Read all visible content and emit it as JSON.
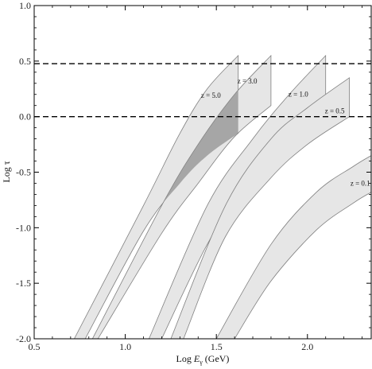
{
  "chart_data": {
    "type": "area",
    "xlabel": "Log E_γ (GeV)",
    "xlabel_parts": {
      "prefix": "Log ",
      "var": "E",
      "sub": "γ",
      "suffix": " (GeV)"
    },
    "ylabel": "Log τ",
    "xlim": [
      0.5,
      2.35
    ],
    "ylim": [
      -2.0,
      1.0
    ],
    "xticks": [
      0.5,
      1.0,
      1.5,
      2.0
    ],
    "xtick_labels": [
      "0.5",
      "1.0",
      "1.5",
      "2.0"
    ],
    "yticks": [
      -2.0,
      -1.5,
      -1.0,
      -0.5,
      0.0,
      0.5,
      1.0
    ],
    "ytick_labels": [
      "-2.0",
      "-1.5",
      "-1.0",
      "-0.5",
      "0.0",
      "0.5",
      "1.0"
    ],
    "grid": false,
    "reference_lines": [
      {
        "y": 0.477,
        "style": "dashed"
      },
      {
        "y": 0.0,
        "style": "dashed"
      }
    ],
    "bands": [
      {
        "label": "z = 5.0",
        "label_at": [
          1.47,
          0.17
        ],
        "top": {
          "x": [
            0.72,
            1.1,
            1.3,
            1.45,
            1.62
          ],
          "y": [
            -2.0,
            -0.8,
            -0.15,
            0.25,
            0.55
          ]
        },
        "bottom": {
          "x": [
            0.78,
            1.1,
            1.3,
            1.45,
            1.62
          ],
          "y": [
            -2.0,
            -1.03,
            -0.6,
            -0.35,
            -0.15
          ]
        }
      },
      {
        "label": "z = 3.0",
        "label_at": [
          1.67,
          0.3
        ],
        "top": {
          "x": [
            0.82,
            1.2,
            1.4,
            1.6,
            1.8
          ],
          "y": [
            -2.0,
            -0.8,
            -0.25,
            0.2,
            0.55
          ]
        },
        "bottom": {
          "x": [
            0.85,
            1.2,
            1.4,
            1.6,
            1.8
          ],
          "y": [
            -2.0,
            -1.05,
            -0.6,
            -0.18,
            0.1
          ]
        }
      },
      {
        "label": "z = 1.0",
        "label_at": [
          1.95,
          0.18
        ],
        "top": {
          "x": [
            1.13,
            1.45,
            1.7,
            1.9,
            2.1
          ],
          "y": [
            -2.0,
            -0.8,
            -0.2,
            0.2,
            0.55
          ]
        },
        "bottom": {
          "x": [
            1.2,
            1.45,
            1.7,
            1.9,
            2.1
          ],
          "y": [
            -2.0,
            -1.15,
            -0.5,
            -0.15,
            0.05
          ]
        }
      },
      {
        "label": "z = 0.5",
        "label_at": [
          2.15,
          0.03
        ],
        "top": {
          "x": [
            1.25,
            1.55,
            1.8,
            2.0,
            2.23
          ],
          "y": [
            -2.0,
            -0.8,
            -0.2,
            0.08,
            0.35
          ]
        },
        "bottom": {
          "x": [
            1.32,
            1.55,
            1.8,
            2.0,
            2.23
          ],
          "y": [
            -2.0,
            -1.08,
            -0.55,
            -0.25,
            0.0
          ]
        }
      },
      {
        "label": "z = 0.1",
        "label_at": [
          2.29,
          -0.62
        ],
        "top": {
          "x": [
            1.5,
            1.8,
            2.05,
            2.25,
            2.35
          ],
          "y": [
            -2.0,
            -1.15,
            -0.68,
            -0.45,
            -0.35
          ]
        },
        "bottom": {
          "x": [
            1.6,
            1.8,
            2.05,
            2.25,
            2.35
          ],
          "y": [
            -2.0,
            -1.48,
            -1.02,
            -0.78,
            -0.68
          ]
        }
      }
    ],
    "overlap_region": {
      "between": [
        "z = 5.0",
        "z = 3.0"
      ],
      "color": "#a6a6a6"
    },
    "colors": {
      "band_fill": "#e6e6e6",
      "band_stroke": "#808080",
      "overlap_fill": "#a6a6a6",
      "dash_line": "#000000",
      "frame": "#000000"
    }
  }
}
